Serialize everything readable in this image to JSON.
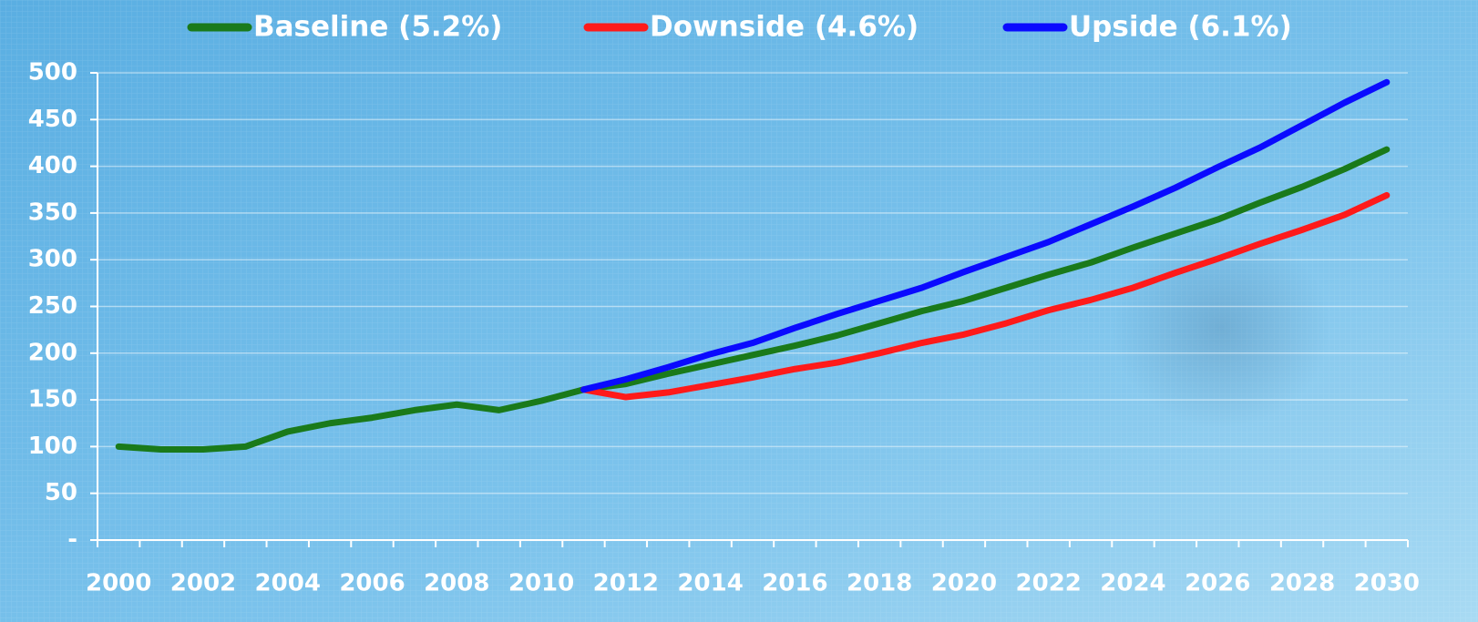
{
  "chart_data": {
    "type": "line",
    "categories": [
      "2000",
      null,
      "2002",
      null,
      "2004",
      null,
      "2006",
      null,
      "2008",
      null,
      "2010",
      null,
      "2012",
      null,
      "2014",
      null,
      "2016",
      null,
      "2018",
      null,
      "2020",
      null,
      "2022",
      null,
      "2024",
      null,
      "2026",
      null,
      "2028",
      null,
      "2030"
    ],
    "series": [
      {
        "name": "Baseline (5.2%)",
        "color": "#1a7a1a",
        "values": [
          100,
          97,
          97,
          100,
          116,
          125,
          131,
          139,
          145,
          139,
          149,
          161,
          167,
          178,
          188,
          198,
          208,
          219,
          232,
          245,
          256,
          270,
          284,
          297,
          313,
          328,
          343,
          361,
          378,
          397,
          418
        ]
      },
      {
        "name": "Downside (4.6%)",
        "color": "#ff1a1a",
        "values": [
          null,
          null,
          null,
          null,
          null,
          null,
          null,
          null,
          null,
          null,
          null,
          161,
          153,
          158,
          166,
          174,
          183,
          190,
          200,
          211,
          220,
          232,
          246,
          257,
          270,
          286,
          301,
          317,
          332,
          348,
          369
        ]
      },
      {
        "name": "Upside (6.1%)",
        "color": "#0a0aff",
        "values": [
          null,
          null,
          null,
          null,
          null,
          null,
          null,
          null,
          null,
          null,
          null,
          161,
          172,
          185,
          199,
          211,
          227,
          242,
          256,
          270,
          287,
          303,
          319,
          338,
          357,
          377,
          399,
          420,
          444,
          468,
          490
        ]
      }
    ],
    "ylim": [
      0,
      500
    ],
    "yticks": [
      {
        "value": 0,
        "label": "-"
      },
      50,
      100,
      150,
      200,
      250,
      300,
      350,
      400,
      450,
      500
    ],
    "grid": true,
    "legend": "top"
  }
}
